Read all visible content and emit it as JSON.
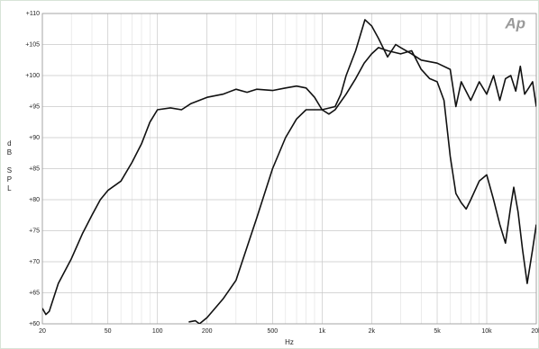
{
  "chart_data": {
    "type": "line",
    "logo": "Ap",
    "xlabel": "Hz",
    "ylabel": "dB SPL",
    "xscale": "log",
    "grid": true,
    "xlim": [
      20,
      20000
    ],
    "ylim": [
      60,
      110
    ],
    "xticks": [
      20,
      50,
      100,
      200,
      500,
      {
        "value": 1000,
        "label": "1k"
      },
      {
        "value": 2000,
        "label": "2k"
      },
      {
        "value": 5000,
        "label": "5k"
      },
      {
        "value": 10000,
        "label": "10k"
      },
      {
        "value": 20000,
        "label": "20k"
      }
    ],
    "xminorticks": [
      30,
      40,
      60,
      70,
      80,
      90,
      300,
      400,
      600,
      700,
      800,
      900,
      3000,
      4000,
      6000,
      7000,
      8000,
      9000
    ],
    "yticks": [
      {
        "value": 60,
        "label": "+60"
      },
      {
        "value": 65,
        "label": "+65"
      },
      {
        "value": 70,
        "label": "+70"
      },
      {
        "value": 75,
        "label": "+75"
      },
      {
        "value": 80,
        "label": "+80"
      },
      {
        "value": 85,
        "label": "+85"
      },
      {
        "value": 90,
        "label": "+90"
      },
      {
        "value": 95,
        "label": "+95"
      },
      {
        "value": 100,
        "label": "+100"
      },
      {
        "value": 105,
        "label": "+105"
      },
      {
        "value": 110,
        "label": "+110"
      }
    ],
    "series": [
      {
        "color": "#111111",
        "x": [
          20,
          21,
          22,
          25,
          30,
          35,
          40,
          45,
          50,
          60,
          70,
          80,
          90,
          100,
          120,
          140,
          160,
          200,
          250,
          300,
          350,
          400,
          500,
          600,
          700,
          800,
          900,
          1000,
          1100,
          1200,
          1400,
          1600,
          1800,
          2000,
          2200,
          2500,
          3000,
          3500,
          4000,
          4500,
          5000,
          5500,
          6000,
          6500,
          7000,
          7500,
          8000,
          9000,
          10000,
          11000,
          12000,
          13000,
          14000,
          14600,
          15500,
          16500,
          17600,
          19000,
          20000
        ],
        "values": [
          62.5,
          61.5,
          62,
          66.5,
          70.5,
          74.5,
          77.5,
          80,
          81.5,
          83,
          86,
          89,
          92.5,
          94.5,
          94.8,
          94.5,
          95.5,
          96.5,
          97,
          97.8,
          97.3,
          97.8,
          97.6,
          98,
          98.3,
          98,
          96.5,
          94.5,
          93.8,
          94.5,
          97,
          99.5,
          102,
          103.5,
          104.5,
          104,
          103.5,
          104,
          101,
          99.5,
          99,
          96,
          87,
          81,
          79.5,
          78.5,
          80,
          83,
          84,
          80,
          76,
          73,
          79,
          82,
          78,
          72,
          66.5,
          72,
          76
        ]
      },
      {
        "color": "#111111",
        "x": [
          155,
          170,
          180,
          200,
          250,
          300,
          400,
          500,
          600,
          700,
          800,
          1000,
          1200,
          1300,
          1400,
          1600,
          1820,
          2000,
          2200,
          2500,
          2800,
          3000,
          3500,
          4000,
          5000,
          6000,
          6500,
          7000,
          8000,
          9000,
          10000,
          11000,
          12000,
          13000,
          14000,
          15000,
          16000,
          17000,
          18000,
          19000,
          20000
        ],
        "values": [
          60.3,
          60.5,
          60,
          61,
          64,
          67,
          77,
          85,
          90,
          93,
          94.5,
          94.5,
          95,
          97,
          100,
          104,
          109,
          108,
          106,
          103,
          105,
          104.5,
          103.5,
          102.5,
          102,
          101,
          95,
          99,
          96,
          99,
          97,
          100,
          96,
          99.5,
          100,
          97.5,
          101.5,
          97,
          98,
          99,
          95
        ]
      }
    ]
  }
}
